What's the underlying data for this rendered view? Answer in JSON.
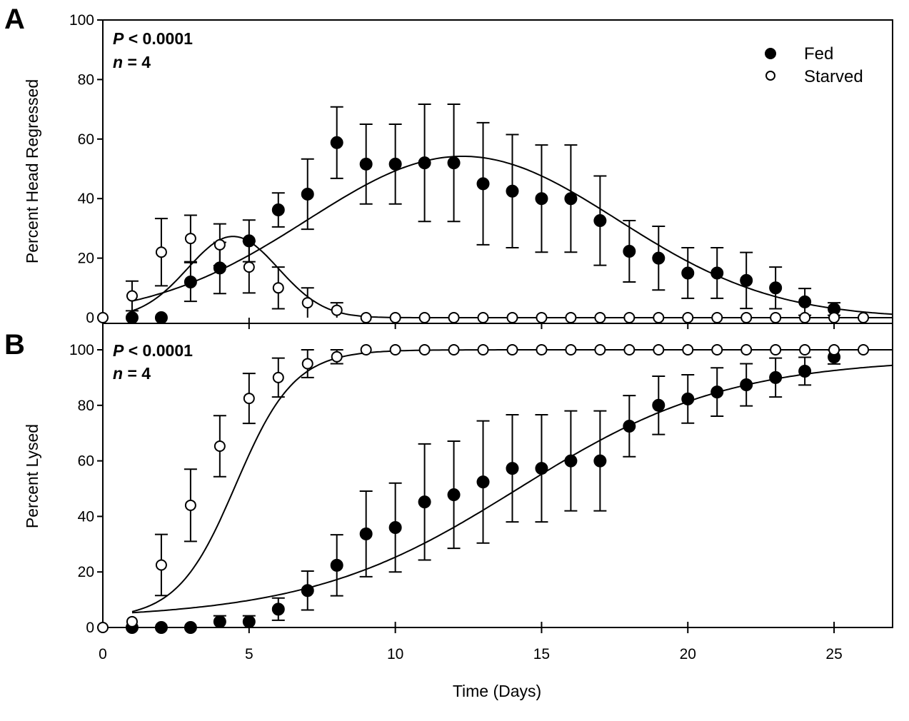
{
  "chart_data": [
    {
      "panel": "A",
      "type": "scatter",
      "title": "",
      "xlabel": "",
      "ylabel": "Percent Head Regressed",
      "xlim": [
        0,
        27
      ],
      "ylim": [
        0,
        100
      ],
      "yticks": [
        0,
        20,
        40,
        60,
        80,
        100
      ],
      "ytick_labels": [
        "0",
        "20",
        "40",
        "60",
        "80",
        "100"
      ],
      "xticks": [
        0,
        5,
        10,
        15,
        20,
        25
      ],
      "grid": false,
      "annotations": {
        "p_label": "P",
        "p_rest": " < 0.0001",
        "n_label": "n",
        "n_rest": " = 4"
      },
      "legend": {
        "position": "top-right",
        "entries": [
          {
            "name": "Fed",
            "marker": "filled-circle"
          },
          {
            "name": "Starved",
            "marker": "open-circle"
          }
        ]
      },
      "series": [
        {
          "name": "Fed",
          "marker": "filled-circle",
          "x": [
            1,
            2,
            3,
            4,
            5,
            6,
            7,
            8,
            9,
            10,
            11,
            12,
            13,
            14,
            15,
            16,
            17,
            18,
            19,
            20,
            21,
            22,
            23,
            24,
            25
          ],
          "y": [
            0,
            0,
            12,
            16.7,
            25.8,
            36.2,
            41.5,
            58.8,
            51.6,
            51.6,
            52,
            52,
            45,
            42.5,
            40,
            40,
            32.6,
            22.3,
            20,
            15,
            15,
            12.5,
            10,
            5.3,
            2.9
          ],
          "err": [
            0,
            0,
            6.5,
            8.6,
            7,
            5.7,
            11.8,
            12,
            13.4,
            13.4,
            19.7,
            19.7,
            20.5,
            19,
            18,
            18,
            15,
            10.3,
            10.7,
            8.5,
            8.5,
            9.4,
            7,
            4.5,
            2.1
          ],
          "fit": {
            "model": "gaussian",
            "peak": 54.2,
            "center": 12.3,
            "width": 5.3,
            "baseline": 0
          }
        },
        {
          "name": "Starved",
          "marker": "open-circle",
          "x": [
            0,
            1,
            2,
            3,
            4,
            5,
            6,
            7,
            8,
            9,
            10,
            11,
            12,
            13,
            14,
            15,
            16,
            17,
            18,
            19,
            20,
            21,
            22,
            23,
            24,
            25,
            26
          ],
          "y": [
            0,
            7.3,
            22,
            26.6,
            24.5,
            17,
            10,
            5,
            2.5,
            0,
            0,
            0,
            0,
            0,
            0,
            0,
            0,
            0,
            0,
            0,
            0,
            0,
            0,
            0,
            0,
            0,
            0
          ],
          "err": [
            0,
            5,
            11.3,
            7.8,
            7,
            8.7,
            7,
            5,
            2.5,
            0,
            0,
            0,
            0,
            0,
            0,
            0,
            0,
            0,
            0,
            0,
            0,
            0,
            0,
            0,
            0,
            0,
            0
          ],
          "fit": {
            "model": "gaussian",
            "peak": 27.3,
            "center": 4.45,
            "width": 1.55,
            "baseline": 0
          }
        }
      ]
    },
    {
      "panel": "B",
      "type": "scatter",
      "title": "",
      "xlabel": "Time (Days)",
      "ylabel": "Percent Lysed",
      "xlim": [
        0,
        27
      ],
      "ylim": [
        0,
        100
      ],
      "yticks": [
        0,
        20,
        40,
        60,
        80,
        100
      ],
      "ytick_labels": [
        "0",
        "20",
        "40",
        "60",
        "80",
        "100"
      ],
      "xticks": [
        0,
        5,
        10,
        15,
        20,
        25
      ],
      "xtick_labels": [
        "0",
        "5",
        "10",
        "15",
        "20",
        "25"
      ],
      "grid": false,
      "annotations": {
        "p_label": "P",
        "p_rest": " < 0.0001",
        "n_label": "n",
        "n_rest": " = 4"
      },
      "series": [
        {
          "name": "Fed",
          "marker": "filled-circle",
          "x": [
            1,
            2,
            3,
            4,
            5,
            6,
            7,
            8,
            9,
            10,
            11,
            12,
            13,
            14,
            15,
            16,
            17,
            18,
            19,
            20,
            21,
            22,
            23,
            24,
            25
          ],
          "y": [
            0,
            0,
            0,
            2.1,
            2.1,
            6.6,
            13.3,
            22.4,
            33.7,
            36,
            45.2,
            47.8,
            52.4,
            57.3,
            57.3,
            60,
            60,
            72.5,
            80,
            82.3,
            84.8,
            87.4,
            90,
            92.3,
            97.4
          ],
          "err": [
            0,
            0,
            0,
            2.1,
            2.1,
            4,
            7,
            11,
            15.4,
            16,
            20.9,
            19.3,
            22,
            19.3,
            19.3,
            18,
            18,
            11,
            10.5,
            8.7,
            8.7,
            7.6,
            7,
            5,
            2.5
          ],
          "fit": {
            "model": "sigmoid",
            "max": 97,
            "midpoint": 14.2,
            "slope": 3.6,
            "baseline": 3
          }
        },
        {
          "name": "Starved",
          "marker": "open-circle",
          "x": [
            0,
            1,
            2,
            3,
            4,
            5,
            6,
            7,
            8,
            9,
            10,
            11,
            12,
            13,
            14,
            15,
            16,
            17,
            18,
            19,
            20,
            21,
            22,
            23,
            24,
            25,
            26
          ],
          "y": [
            0,
            2.1,
            22.5,
            44,
            65.3,
            82.5,
            90,
            95,
            97.5,
            100,
            100,
            100,
            100,
            100,
            100,
            100,
            100,
            100,
            100,
            100,
            100,
            100,
            100,
            100,
            100,
            100,
            100
          ],
          "err": [
            0,
            0,
            11,
            13,
            11,
            9,
            7,
            5,
            2.5,
            0,
            0,
            0,
            0,
            0,
            0,
            0,
            0,
            0,
            0,
            0,
            0,
            0,
            0,
            0,
            0,
            0,
            0
          ],
          "fit": {
            "model": "sigmoid",
            "max": 100,
            "midpoint": 4.55,
            "slope": 1.0,
            "baseline": 3
          }
        }
      ]
    }
  ],
  "panels": {
    "a_letter": "A",
    "b_letter": "B"
  }
}
